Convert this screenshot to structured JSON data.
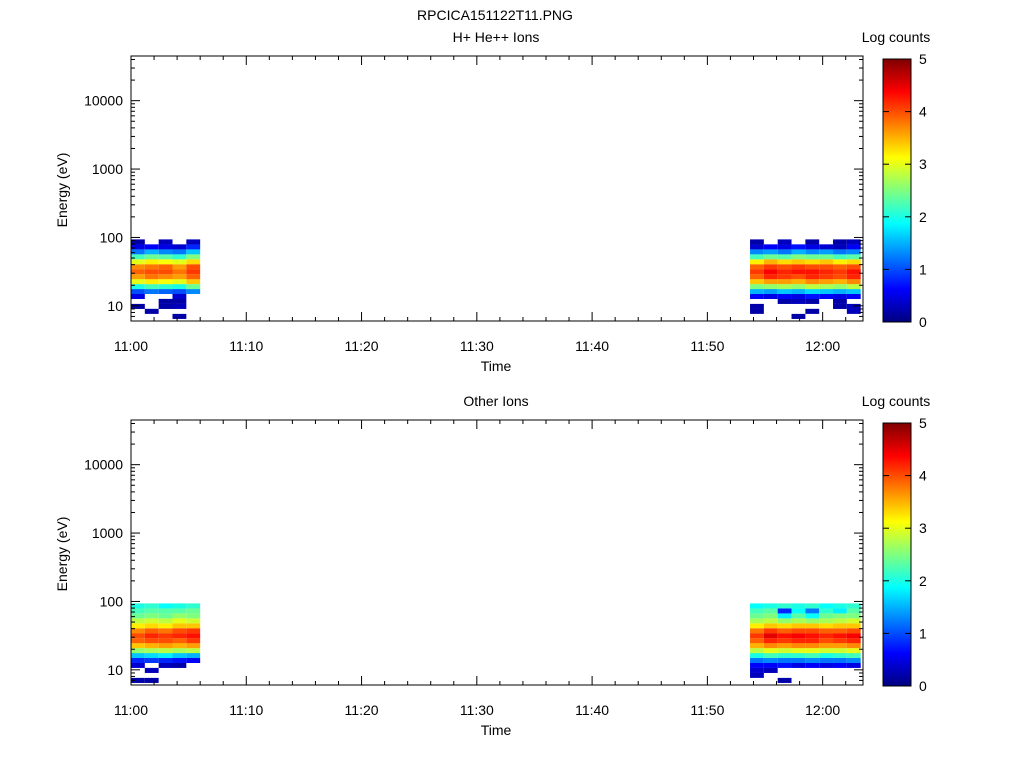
{
  "figure_title": "RPCICA151122T11.PNG",
  "colorscale": [
    "#00007f",
    "#0000ff",
    "#007fff",
    "#00ffff",
    "#7fff7f",
    "#ffff00",
    "#ff7f00",
    "#ff0000",
    "#7f0000"
  ],
  "chart_data": [
    {
      "type": "heatmap",
      "title": "H+ He++ Ions",
      "xlabel": "Time",
      "ylabel": "Energy (eV)",
      "x_ticks": [
        "11:00",
        "11:10",
        "11:20",
        "11:30",
        "11:40",
        "11:50",
        "12:00"
      ],
      "xlim_minutes_after_11_00": [
        0,
        63.5
      ],
      "y_scale": "log",
      "y_ticks": [
        "10",
        "100",
        "1000",
        "10000"
      ],
      "ylim": [
        6,
        45000
      ],
      "colorbar": {
        "label": "Log counts",
        "ticks": [
          "0",
          "1",
          "2",
          "3",
          "4",
          "5"
        ],
        "range": [
          0,
          5
        ]
      },
      "energy_bins": [
        7,
        8.3,
        9.8,
        11.6,
        13.7,
        16.2,
        19.1,
        22.6,
        26.7,
        31.6,
        37.3,
        44.1,
        52.1,
        61.6,
        72.8,
        86
      ],
      "time_columns": [
        {
          "t": 0.0,
          "values": [
            null,
            null,
            0.2,
            null,
            0.5,
            1.0,
            2.0,
            3.0,
            3.6,
            3.9,
            3.7,
            3.0,
            2.2,
            1.2,
            0.5,
            0.2
          ]
        },
        {
          "t": 1.2,
          "values": [
            null,
            0.2,
            null,
            null,
            null,
            1.2,
            2.2,
            3.2,
            3.8,
            4.0,
            3.8,
            3.2,
            2.4,
            1.5,
            0.6,
            null
          ]
        },
        {
          "t": 2.4,
          "values": [
            null,
            null,
            0.2,
            0.2,
            null,
            1.1,
            2.1,
            3.1,
            3.7,
            4.0,
            3.9,
            3.1,
            2.3,
            1.3,
            0.5,
            0.3
          ]
        },
        {
          "t": 3.6,
          "values": [
            0.2,
            null,
            0.3,
            0.2,
            0.4,
            1.0,
            2.0,
            3.0,
            3.6,
            3.8,
            3.6,
            3.0,
            2.1,
            1.2,
            0.4,
            null
          ]
        },
        {
          "t": 4.8,
          "values": [
            null,
            null,
            null,
            null,
            null,
            1.3,
            2.4,
            3.4,
            3.9,
            4.1,
            4.0,
            3.3,
            2.5,
            1.6,
            0.8,
            0.3
          ]
        },
        {
          "t": 53.7,
          "values": [
            null,
            0.2,
            0.2,
            null,
            0.6,
            1.5,
            2.5,
            3.4,
            3.9,
            4.1,
            3.9,
            3.2,
            2.2,
            1.3,
            0.4,
            0.2
          ]
        },
        {
          "t": 54.9,
          "values": [
            null,
            null,
            null,
            null,
            0.5,
            1.4,
            2.6,
            3.6,
            4.2,
            4.4,
            4.1,
            3.5,
            2.4,
            1.4,
            0.6,
            null
          ]
        },
        {
          "t": 56.1,
          "values": [
            null,
            null,
            null,
            0.2,
            0.6,
            1.6,
            2.7,
            3.6,
            4.1,
            4.2,
            4.0,
            3.3,
            2.3,
            1.2,
            0.5,
            0.3
          ]
        },
        {
          "t": 57.3,
          "values": [
            0.2,
            null,
            null,
            0.3,
            0.5,
            1.5,
            2.6,
            3.5,
            4.0,
            4.3,
            4.1,
            3.4,
            2.5,
            1.5,
            0.7,
            null
          ]
        },
        {
          "t": 58.5,
          "values": [
            null,
            0.2,
            null,
            0.2,
            0.7,
            1.7,
            2.8,
            3.7,
            4.2,
            4.3,
            4.0,
            3.3,
            2.4,
            1.3,
            0.5,
            0.2
          ]
        },
        {
          "t": 59.7,
          "values": [
            null,
            null,
            null,
            null,
            0.6,
            1.6,
            2.7,
            3.6,
            4.1,
            4.2,
            4.0,
            3.4,
            2.4,
            1.4,
            0.4,
            null
          ]
        },
        {
          "t": 60.9,
          "values": [
            null,
            null,
            0.2,
            0.2,
            0.5,
            1.5,
            2.6,
            3.5,
            4.0,
            4.1,
            3.9,
            3.2,
            2.2,
            1.2,
            0.3,
            0.2
          ]
        },
        {
          "t": 62.1,
          "values": [
            null,
            0.3,
            0.3,
            null,
            0.6,
            1.6,
            2.8,
            3.7,
            4.2,
            4.3,
            4.0,
            3.3,
            2.3,
            1.3,
            0.6,
            0.3
          ]
        }
      ]
    },
    {
      "type": "heatmap",
      "title": "Other Ions",
      "xlabel": "Time",
      "ylabel": "Energy (eV)",
      "x_ticks": [
        "11:00",
        "11:10",
        "11:20",
        "11:30",
        "11:40",
        "11:50",
        "12:00"
      ],
      "xlim_minutes_after_11_00": [
        0,
        63.5
      ],
      "y_scale": "log",
      "y_ticks": [
        "10",
        "100",
        "1000",
        "10000"
      ],
      "ylim": [
        6,
        45000
      ],
      "colorbar": {
        "label": "Log counts",
        "ticks": [
          "0",
          "1",
          "2",
          "3",
          "4",
          "5"
        ],
        "range": [
          0,
          5
        ]
      },
      "energy_bins": [
        7,
        8.3,
        9.8,
        11.6,
        13.7,
        16.2,
        19.1,
        22.6,
        26.7,
        31.6,
        37.3,
        44.1,
        52.1,
        61.6,
        72.8,
        86
      ],
      "time_columns": [
        {
          "t": 0.0,
          "values": [
            0.2,
            null,
            null,
            0.4,
            0.8,
            1.6,
            2.6,
            3.4,
            3.9,
            4.0,
            3.7,
            3.2,
            2.8,
            2.4,
            2.2,
            2.0
          ]
        },
        {
          "t": 1.2,
          "values": [
            0.2,
            null,
            0.3,
            null,
            0.9,
            1.7,
            2.7,
            3.5,
            4.0,
            4.2,
            3.9,
            3.3,
            2.9,
            2.5,
            2.3,
            2.1
          ]
        },
        {
          "t": 2.4,
          "values": [
            null,
            null,
            null,
            0.3,
            0.8,
            1.8,
            2.8,
            3.6,
            4.0,
            4.1,
            3.8,
            3.2,
            2.8,
            2.4,
            2.3,
            1.9
          ]
        },
        {
          "t": 3.6,
          "values": [
            null,
            null,
            null,
            0.2,
            0.7,
            1.6,
            2.7,
            3.5,
            3.9,
            4.2,
            4.0,
            3.4,
            3.0,
            2.6,
            2.3,
            2.0
          ]
        },
        {
          "t": 4.8,
          "values": [
            null,
            null,
            null,
            null,
            0.6,
            1.5,
            2.8,
            3.6,
            4.1,
            4.3,
            4.1,
            3.4,
            2.9,
            2.5,
            2.4,
            2.1
          ]
        },
        {
          "t": 53.7,
          "values": [
            null,
            0.3,
            0.4,
            0.6,
            1.2,
            2.0,
            2.8,
            3.5,
            3.9,
            4.1,
            3.8,
            3.2,
            2.7,
            2.4,
            2.2,
            1.9
          ]
        },
        {
          "t": 54.9,
          "values": [
            null,
            null,
            0.3,
            0.6,
            1.3,
            2.2,
            3.0,
            3.7,
            4.2,
            4.5,
            4.1,
            3.4,
            2.8,
            2.5,
            2.3,
            2.0
          ]
        },
        {
          "t": 56.1,
          "values": [
            0.2,
            null,
            null,
            0.7,
            1.2,
            2.1,
            2.9,
            3.6,
            4.1,
            4.3,
            3.9,
            3.3,
            2.6,
            1.8,
            0.8,
            2.1
          ]
        },
        {
          "t": 57.3,
          "values": [
            null,
            null,
            null,
            0.5,
            1.2,
            2.1,
            3.0,
            3.7,
            4.2,
            4.4,
            4.0,
            3.4,
            2.7,
            2.3,
            1.9,
            2.0
          ]
        },
        {
          "t": 58.5,
          "values": [
            null,
            null,
            null,
            0.6,
            1.3,
            2.2,
            3.0,
            3.7,
            4.2,
            4.3,
            4.0,
            3.4,
            2.6,
            1.9,
            1.2,
            2.1
          ]
        },
        {
          "t": 59.7,
          "values": [
            null,
            null,
            null,
            0.5,
            1.2,
            2.0,
            2.9,
            3.6,
            4.0,
            4.2,
            3.9,
            3.3,
            2.7,
            2.4,
            2.1,
            1.9
          ]
        },
        {
          "t": 60.9,
          "values": [
            null,
            null,
            null,
            0.6,
            1.2,
            2.1,
            2.9,
            3.6,
            4.1,
            4.3,
            3.9,
            3.4,
            2.8,
            2.5,
            1.8,
            2.0
          ]
        },
        {
          "t": 62.1,
          "values": [
            null,
            null,
            null,
            0.5,
            1.3,
            2.2,
            3.0,
            3.7,
            4.2,
            4.4,
            4.0,
            3.4,
            2.9,
            2.5,
            2.3,
            2.1
          ]
        }
      ]
    }
  ]
}
